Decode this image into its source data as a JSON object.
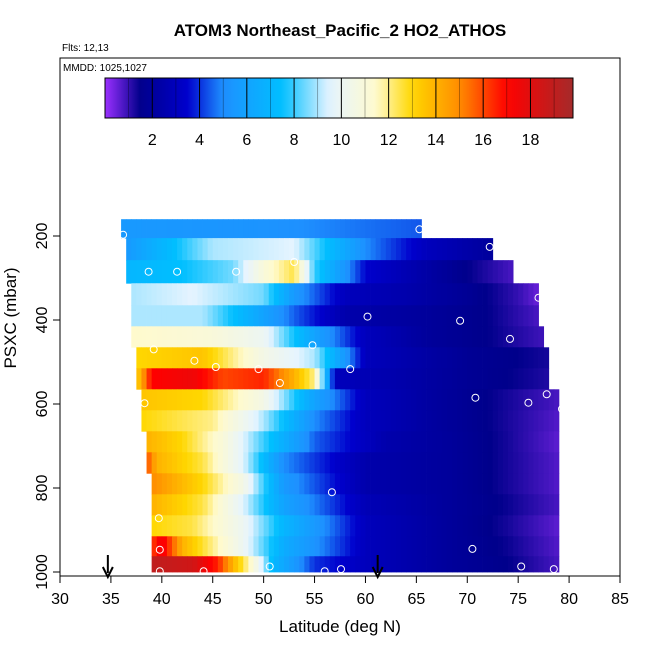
{
  "chart_data": {
    "type": "heatmap",
    "title": "ATOM3 Northeast_Pacific_2 HO2_ATHOS",
    "annotations": [
      "Flts: 12,13",
      "MMDD: 1025,1027"
    ],
    "xlabel": "Latitude (deg N)",
    "ylabel": "PSXC (mbar)",
    "xlim": [
      30,
      85
    ],
    "ylim": [
      1000,
      0
    ],
    "x_ticks": [
      30,
      35,
      40,
      45,
      50,
      55,
      60,
      65,
      70,
      75,
      80,
      85
    ],
    "y_ticks": [
      200,
      400,
      600,
      800,
      1000
    ],
    "colorbar": {
      "range": [
        0,
        19.8
      ],
      "ticks": [
        2,
        4,
        6,
        8,
        10,
        12,
        14,
        16,
        18
      ],
      "stops": [
        {
          "v": 0,
          "color": "#9b30ff"
        },
        {
          "v": 1.5,
          "color": "#00008b"
        },
        {
          "v": 3.5,
          "color": "#0000cd"
        },
        {
          "v": 5,
          "color": "#1e90ff"
        },
        {
          "v": 7.5,
          "color": "#00bfff"
        },
        {
          "v": 9.5,
          "color": "#e6f4ff"
        },
        {
          "v": 11.5,
          "color": "#fffacd"
        },
        {
          "v": 13,
          "color": "#ffd700"
        },
        {
          "v": 15,
          "color": "#ff8c00"
        },
        {
          "v": 17,
          "color": "#ff0000"
        },
        {
          "v": 19.8,
          "color": "#a52a2a"
        }
      ]
    },
    "arrows_lat": [
      34.7,
      61.2
    ],
    "rows": [
      {
        "p": 180,
        "x0": 36,
        "x1": 65.5,
        "knots": [
          [
            36,
            5.5
          ],
          [
            50,
            5.2
          ],
          [
            65.5,
            4.4
          ]
        ]
      },
      {
        "p": 230,
        "x0": 36.5,
        "x1": 72.5,
        "knots": [
          [
            36.5,
            5.5
          ],
          [
            45,
            9
          ],
          [
            53,
            9.5
          ],
          [
            60,
            5
          ],
          [
            66,
            3
          ],
          [
            72.5,
            2
          ]
        ]
      },
      {
        "p": 285,
        "x0": 36.5,
        "x1": 74.5,
        "knots": [
          [
            36.5,
            7
          ],
          [
            42,
            7.5
          ],
          [
            47,
            8.5
          ],
          [
            50,
            11
          ],
          [
            53,
            12.5
          ],
          [
            55,
            8
          ],
          [
            60,
            3.5
          ],
          [
            66,
            2.3
          ],
          [
            70,
            1.5
          ],
          [
            74.5,
            0.8
          ]
        ]
      },
      {
        "p": 340,
        "x0": 37,
        "x1": 77,
        "knots": [
          [
            37,
            9
          ],
          [
            43,
            9.5
          ],
          [
            50,
            8.5
          ],
          [
            53,
            5.5
          ],
          [
            58,
            3
          ],
          [
            64,
            2.5
          ],
          [
            70,
            1.8
          ],
          [
            75,
            1
          ],
          [
            77,
            0.5
          ]
        ]
      },
      {
        "p": 390,
        "x0": 37,
        "x1": 77,
        "knots": [
          [
            37,
            9
          ],
          [
            44,
            9
          ],
          [
            49,
            6.5
          ],
          [
            53,
            4.5
          ],
          [
            58,
            2.5
          ],
          [
            66,
            2
          ],
          [
            72,
            1.5
          ],
          [
            77,
            0.8
          ]
        ]
      },
      {
        "p": 440,
        "x0": 37,
        "x1": 77.5,
        "knots": [
          [
            37,
            11.5
          ],
          [
            45,
            11
          ],
          [
            50,
            10
          ],
          [
            55,
            6
          ],
          [
            60,
            3
          ],
          [
            66,
            2
          ],
          [
            72,
            1.5
          ],
          [
            77.5,
            0.9
          ]
        ]
      },
      {
        "p": 490,
        "x0": 37.5,
        "x1": 78,
        "knots": [
          [
            37.5,
            13
          ],
          [
            44,
            13.5
          ],
          [
            50,
            10.5
          ],
          [
            55,
            9
          ],
          [
            60,
            3
          ],
          [
            64,
            2.5
          ],
          [
            70,
            1.8
          ],
          [
            78,
            1.3
          ]
        ]
      },
      {
        "p": 540,
        "x0": 37.5,
        "x1": 78,
        "knots": [
          [
            37.5,
            13
          ],
          [
            39,
            17
          ],
          [
            43,
            17.5
          ],
          [
            46,
            16
          ],
          [
            50,
            16.5
          ],
          [
            53,
            14
          ],
          [
            55,
            12
          ],
          [
            57,
            3
          ],
          [
            63,
            2.5
          ],
          [
            70,
            1.8
          ],
          [
            78,
            1.2
          ]
        ]
      },
      {
        "p": 590,
        "x0": 38,
        "x1": 79,
        "knots": [
          [
            38,
            13.5
          ],
          [
            44,
            13
          ],
          [
            50,
            10.5
          ],
          [
            55,
            6
          ],
          [
            60,
            3
          ],
          [
            66,
            2.2
          ],
          [
            72,
            1.5
          ],
          [
            79,
            0.8
          ]
        ]
      },
      {
        "p": 640,
        "x0": 38,
        "x1": 79,
        "knots": [
          [
            38,
            13
          ],
          [
            45,
            12
          ],
          [
            50,
            9
          ],
          [
            55,
            5
          ],
          [
            60,
            3
          ],
          [
            66,
            2.2
          ],
          [
            72,
            1.5
          ],
          [
            79,
            0.7
          ]
        ]
      },
      {
        "p": 690,
        "x0": 38.5,
        "x1": 79,
        "knots": [
          [
            38.5,
            14
          ],
          [
            42,
            13
          ],
          [
            46,
            11
          ],
          [
            50,
            8
          ],
          [
            55,
            4.5
          ],
          [
            62,
            2.5
          ],
          [
            68,
            2
          ],
          [
            74,
            1.3
          ],
          [
            79,
            0.6
          ]
        ]
      },
      {
        "p": 740,
        "x0": 38.5,
        "x1": 79,
        "knots": [
          [
            38.5,
            16
          ],
          [
            39.5,
            14
          ],
          [
            44,
            12.5
          ],
          [
            48,
            9.5
          ],
          [
            52,
            5
          ],
          [
            60,
            2.5
          ],
          [
            68,
            2
          ],
          [
            74,
            1.3
          ],
          [
            79,
            0.7
          ]
        ]
      },
      {
        "p": 790,
        "x0": 39,
        "x1": 79,
        "knots": [
          [
            39,
            15
          ],
          [
            44,
            13
          ],
          [
            48,
            10.5
          ],
          [
            52,
            5.5
          ],
          [
            60,
            2.5
          ],
          [
            68,
            2
          ],
          [
            74,
            1.3
          ],
          [
            79,
            0.7
          ]
        ]
      },
      {
        "p": 840,
        "x0": 39,
        "x1": 79,
        "knots": [
          [
            39,
            14
          ],
          [
            44,
            12.5
          ],
          [
            48,
            9.5
          ],
          [
            52,
            6
          ],
          [
            60,
            2.8
          ],
          [
            68,
            2
          ],
          [
            74,
            1.4
          ],
          [
            79,
            0.8
          ]
        ]
      },
      {
        "p": 890,
        "x0": 39,
        "x1": 79,
        "knots": [
          [
            39,
            13
          ],
          [
            43,
            12.5
          ],
          [
            48,
            10
          ],
          [
            52,
            7
          ],
          [
            60,
            3
          ],
          [
            68,
            2
          ],
          [
            74,
            1.3
          ],
          [
            79,
            0.6
          ]
        ]
      },
      {
        "p": 940,
        "x0": 39,
        "x1": 79,
        "knots": [
          [
            39,
            16
          ],
          [
            40,
            17.5
          ],
          [
            42,
            14
          ],
          [
            45,
            12
          ],
          [
            48,
            10
          ],
          [
            52,
            6.5
          ],
          [
            60,
            3
          ],
          [
            68,
            2
          ],
          [
            74,
            1.4
          ],
          [
            79,
            0.7
          ]
        ]
      },
      {
        "p": 985,
        "x0": 39,
        "x1": 79,
        "knots": [
          [
            39,
            19
          ],
          [
            43,
            18.5
          ],
          [
            45.5,
            16.5
          ],
          [
            47,
            14
          ],
          [
            49,
            11
          ],
          [
            51,
            7
          ],
          [
            55,
            4
          ],
          [
            60,
            3
          ],
          [
            68,
            2
          ],
          [
            74,
            1.5
          ],
          [
            79,
            0.8
          ]
        ]
      }
    ],
    "points": [
      [
        36.2,
        197
      ],
      [
        65.3,
        184
      ],
      [
        72.2,
        226
      ],
      [
        38.7,
        285
      ],
      [
        41.5,
        285
      ],
      [
        47.3,
        285
      ],
      [
        53,
        262
      ],
      [
        77,
        347
      ],
      [
        60.2,
        392
      ],
      [
        69.3,
        402
      ],
      [
        74.2,
        445
      ],
      [
        39.2,
        470
      ],
      [
        43.2,
        497
      ],
      [
        45.3,
        512
      ],
      [
        49.5,
        517
      ],
      [
        54.8,
        460
      ],
      [
        58.5,
        517
      ],
      [
        51.6,
        550
      ],
      [
        38.3,
        598
      ],
      [
        70.8,
        585
      ],
      [
        76,
        597
      ],
      [
        77.8,
        577
      ],
      [
        79.3,
        612
      ],
      [
        56.7,
        810
      ],
      [
        39.7,
        872
      ],
      [
        70.5,
        945
      ],
      [
        39.8,
        947
      ],
      [
        39.8,
        998
      ],
      [
        44.1,
        998
      ],
      [
        50.6,
        987
      ],
      [
        56,
        998
      ],
      [
        57.6,
        993
      ],
      [
        75.3,
        987
      ],
      [
        78.5,
        993
      ]
    ]
  }
}
